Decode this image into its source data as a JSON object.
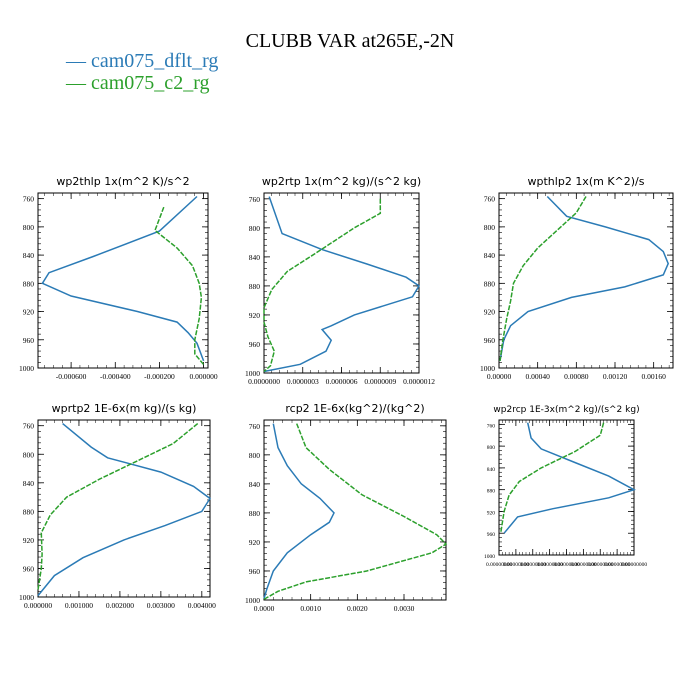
{
  "title": "CLUBB VAR at265E,-2N",
  "legend": [
    "cam075_dflt_rg",
    "cam075_c2_rg"
  ],
  "colors": {
    "dflt": "#2b7bb6",
    "c2": "#2ca02c"
  },
  "chart_data": [
    {
      "type": "line",
      "title": "wp2thlp  1x(m^2 K)/s^2",
      "xlim": [
        -0.00075,
        2e-05
      ],
      "ylim": [
        1000,
        752
      ],
      "xticks": [
        -0.0006,
        -0.0004,
        -0.0002,
        0.0
      ],
      "xtick_labels": [
        "-0.000600",
        "-0.000400",
        "-0.000200",
        "0.000000"
      ],
      "yticks": [
        760,
        800,
        840,
        880,
        920,
        960,
        1000
      ],
      "series": [
        {
          "name": "cam075_dflt_rg",
          "points": [
            [
              -3e-05,
              757
            ],
            [
              -0.0002,
              806
            ],
            [
              -0.0005,
              842
            ],
            [
              -0.0007,
              865
            ],
            [
              -0.00073,
              880
            ],
            [
              -0.0006,
              898
            ],
            [
              -0.0003,
              920
            ],
            [
              -0.00012,
              935
            ],
            [
              -7e-05,
              950
            ],
            [
              -3e-05,
              965
            ],
            [
              0.0,
              990
            ]
          ]
        },
        {
          "name": "cam075_c2_rg",
          "points": [
            [
              -0.00018,
              772
            ],
            [
              -0.00022,
              805
            ],
            [
              -0.00012,
              830
            ],
            [
              -5e-05,
              855
            ],
            [
              -2e-05,
              880
            ],
            [
              -1e-05,
              900
            ],
            [
              -2e-05,
              930
            ],
            [
              -4e-05,
              960
            ],
            [
              -4e-05,
              980
            ],
            [
              0.0,
              995
            ]
          ]
        }
      ]
    },
    {
      "type": "line",
      "title": "wp2rtp  1x(m^2 kg)/(s^2 kg)",
      "xlim": [
        0.0,
        1.2e-06
      ],
      "ylim": [
        1000,
        752
      ],
      "xticks": [
        0.0,
        3e-07,
        6e-07,
        9e-07,
        1.2e-06
      ],
      "xtick_labels": [
        "0.0000000",
        "0.0000003",
        "0.0000006",
        "0.0000009",
        "0.0000012"
      ],
      "yticks": [
        760,
        800,
        840,
        880,
        920,
        960,
        1000
      ],
      "series": [
        {
          "name": "cam075_dflt_rg",
          "points": [
            [
              4e-08,
              757
            ],
            [
              1.4e-07,
              808
            ],
            [
              4.5e-07,
              830
            ],
            [
              8e-07,
              850
            ],
            [
              1.1e-06,
              868
            ],
            [
              1.2e-06,
              880
            ],
            [
              1.15e-06,
              895
            ],
            [
              7e-07,
              920
            ],
            [
              5.2e-07,
              935
            ],
            [
              4.5e-07,
              940
            ],
            [
              5.2e-07,
              955
            ],
            [
              4.8e-07,
              970
            ],
            [
              2.8e-07,
              988
            ],
            [
              0.0,
              998
            ]
          ]
        },
        {
          "name": "cam075_c2_rg",
          "points": [
            [
              9e-07,
              760
            ],
            [
              9e-07,
              780
            ],
            [
              7e-07,
              800
            ],
            [
              4e-07,
              835
            ],
            [
              1.8e-07,
              860
            ],
            [
              6e-08,
              885
            ],
            [
              0.0,
              910
            ],
            [
              0.0,
              930
            ],
            [
              3e-08,
              950
            ],
            [
              8e-08,
              970
            ],
            [
              5e-08,
              990
            ],
            [
              0.0,
              998
            ]
          ]
        }
      ]
    },
    {
      "type": "line",
      "title": "wpthlp2  1x(m K^2)/s",
      "xlim": [
        0.0,
        0.0018
      ],
      "ylim": [
        1000,
        752
      ],
      "xticks": [
        0.0,
        0.0004,
        0.0008,
        0.0012,
        0.0016
      ],
      "xtick_labels": [
        "0.00000",
        "0.00040",
        "0.00080",
        "0.00120",
        "0.00160"
      ],
      "yticks": [
        760,
        800,
        840,
        880,
        920,
        960,
        1000
      ],
      "series": [
        {
          "name": "cam075_dflt_rg",
          "points": [
            [
              0.0005,
              757
            ],
            [
              0.0007,
              785
            ],
            [
              0.0011,
              800
            ],
            [
              0.00155,
              818
            ],
            [
              0.0017,
              835
            ],
            [
              0.00175,
              852
            ],
            [
              0.0017,
              868
            ],
            [
              0.0013,
              885
            ],
            [
              0.00075,
              900
            ],
            [
              0.0003,
              920
            ],
            [
              0.00012,
              940
            ],
            [
              5e-05,
              960
            ],
            [
              1e-05,
              990
            ]
          ]
        },
        {
          "name": "cam075_c2_rg",
          "points": [
            [
              0.0009,
              757
            ],
            [
              0.0008,
              780
            ],
            [
              0.0006,
              805
            ],
            [
              0.0004,
              830
            ],
            [
              0.00025,
              855
            ],
            [
              0.00015,
              880
            ],
            [
              0.00012,
              905
            ],
            [
              8e-05,
              930
            ],
            [
              4e-05,
              960
            ],
            [
              1e-05,
              990
            ]
          ]
        }
      ]
    },
    {
      "type": "line",
      "title": "wprtp2  1E-6x(m kg)/(s kg)",
      "xlim": [
        0.0,
        0.0042
      ],
      "ylim": [
        1000,
        752
      ],
      "xticks": [
        0.0,
        0.001,
        0.002,
        0.003,
        0.004
      ],
      "xtick_labels": [
        "0.000000",
        "0.001000",
        "0.002000",
        "0.003000",
        "0.004000"
      ],
      "yticks": [
        760,
        800,
        840,
        880,
        920,
        960,
        1000
      ],
      "series": [
        {
          "name": "cam075_dflt_rg",
          "points": [
            [
              0.0006,
              757
            ],
            [
              0.0013,
              790
            ],
            [
              0.0017,
              805
            ],
            [
              0.003,
              825
            ],
            [
              0.0038,
              845
            ],
            [
              0.0042,
              862
            ],
            [
              0.004,
              880
            ],
            [
              0.0031,
              900
            ],
            [
              0.0021,
              920
            ],
            [
              0.0011,
              945
            ],
            [
              0.0004,
              970
            ],
            [
              0.0,
              998
            ]
          ]
        },
        {
          "name": "cam075_c2_rg",
          "points": [
            [
              0.0039,
              757
            ],
            [
              0.0033,
              785
            ],
            [
              0.0024,
              810
            ],
            [
              0.0015,
              835
            ],
            [
              0.0007,
              860
            ],
            [
              0.0003,
              885
            ],
            [
              8e-05,
              910
            ],
            [
              0.0001,
              940
            ],
            [
              8e-05,
              960
            ],
            [
              0.0,
              990
            ]
          ]
        }
      ]
    },
    {
      "type": "line",
      "title": "rcp2  1E-6x(kg^2)/(kg^2)",
      "xlim": [
        0.0,
        0.0039
      ],
      "ylim": [
        1000,
        752
      ],
      "xticks": [
        0.0,
        0.001,
        0.002,
        0.003
      ],
      "xtick_labels": [
        "0.0000",
        "0.0010",
        "0.0020",
        "0.0030"
      ],
      "yticks": [
        760,
        800,
        840,
        880,
        920,
        960,
        1000
      ],
      "series": [
        {
          "name": "cam075_dflt_rg",
          "points": [
            [
              0.0002,
              757
            ],
            [
              0.0003,
              790
            ],
            [
              0.0005,
              815
            ],
            [
              0.0008,
              840
            ],
            [
              0.0012,
              860
            ],
            [
              0.0015,
              880
            ],
            [
              0.0014,
              893
            ],
            [
              0.001,
              910
            ],
            [
              0.0005,
              935
            ],
            [
              0.0002,
              960
            ],
            [
              6e-05,
              985
            ],
            [
              0.0,
              998
            ]
          ]
        },
        {
          "name": "cam075_c2_rg",
          "points": [
            [
              0.0007,
              757
            ],
            [
              0.0009,
              790
            ],
            [
              0.0014,
              820
            ],
            [
              0.0021,
              855
            ],
            [
              0.003,
              885
            ],
            [
              0.0037,
              910
            ],
            [
              0.0039,
              923
            ],
            [
              0.0036,
              935
            ],
            [
              0.0022,
              960
            ],
            [
              0.0009,
              975
            ],
            [
              0.0003,
              988
            ],
            [
              0.0,
              999
            ]
          ]
        }
      ]
    },
    {
      "type": "line",
      "title": "wp2rcp  1E-3x(m^2 kg)/(s^2 kg)",
      "xlim": [
        0.0,
        8e-06
      ],
      "ylim": [
        1000,
        752
      ],
      "xticks": [
        0.0,
        1e-06,
        2e-06,
        3e-06,
        4e-06,
        5e-06,
        6e-06,
        7e-06,
        8e-06
      ],
      "xtick_labels": [
        "0.00000000",
        "0.00000000",
        "0.00000000",
        "0.00000000",
        "0.00000000",
        "0.00000000",
        "0.00000000",
        "0.00000000",
        "0.00000000"
      ],
      "yticks": [
        760,
        800,
        840,
        880,
        920,
        960,
        1000
      ],
      "series": [
        {
          "name": "cam075_dflt_rg",
          "points": [
            [
              1.7e-06,
              757
            ],
            [
              1.9e-06,
              785
            ],
            [
              2.5e-06,
              805
            ],
            [
              4.5e-06,
              830
            ],
            [
              6.5e-06,
              855
            ],
            [
              8e-06,
              880
            ],
            [
              6.5e-06,
              895
            ],
            [
              3.2e-06,
              915
            ],
            [
              1.1e-06,
              930
            ],
            [
              7e-07,
              945
            ],
            [
              3e-07,
              960
            ]
          ]
        },
        {
          "name": "cam075_c2_rg",
          "points": [
            [
              6.2e-06,
              757
            ],
            [
              6e-06,
              780
            ],
            [
              4.5e-06,
              810
            ],
            [
              2.5e-06,
              840
            ],
            [
              1.2e-06,
              865
            ],
            [
              6e-07,
              890
            ],
            [
              3e-07,
              920
            ],
            [
              2e-07,
              940
            ],
            [
              1e-07,
              960
            ]
          ]
        }
      ]
    }
  ]
}
